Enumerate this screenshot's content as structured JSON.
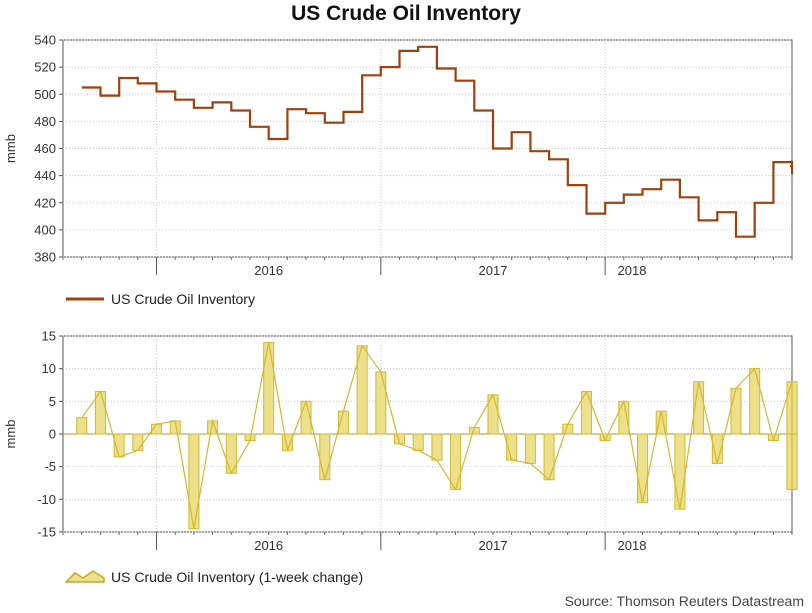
{
  "source": "Source: Thomson Reuters Datastream",
  "chart_data": [
    {
      "type": "line",
      "title": "US Crude Oil Inventory",
      "ylabel": "mmb",
      "ylim": [
        380,
        540
      ],
      "yticks": [
        380,
        400,
        420,
        440,
        460,
        480,
        500,
        520,
        540
      ],
      "x_ticks": [
        "2016",
        "2017",
        "2018"
      ],
      "legend_position": "bottom-left",
      "grid": true,
      "color": "#a0410d",
      "series": [
        {
          "name": "US Crude Oil Inventory",
          "x": [
            "2015-09",
            "2015-10",
            "2015-11",
            "2015-12",
            "2016-01",
            "2016-02",
            "2016-03",
            "2016-04",
            "2016-05",
            "2016-06",
            "2016-07",
            "2016-08",
            "2016-09",
            "2016-10",
            "2016-11",
            "2016-12",
            "2017-01",
            "2017-02",
            "2017-03",
            "2017-04",
            "2017-05",
            "2017-06",
            "2017-07",
            "2017-08",
            "2017-09",
            "2017-10",
            "2017-11",
            "2017-12",
            "2018-01",
            "2018-02",
            "2018-03",
            "2018-04",
            "2018-05",
            "2018-06",
            "2018-07",
            "2018-08",
            "2018-09",
            "2018-10",
            "2018-11",
            "2018-12"
          ],
          "values": [
            505,
            499,
            512,
            508,
            502,
            496,
            490,
            494,
            488,
            476,
            467,
            489,
            486,
            479,
            487,
            514,
            520,
            532,
            535,
            519,
            510,
            488,
            460,
            472,
            458,
            452,
            433,
            412,
            420,
            426,
            430,
            437,
            424,
            407,
            413,
            395,
            420,
            450,
            441,
            447
          ]
        }
      ]
    },
    {
      "type": "area",
      "ylabel": "mmb",
      "ylim": [
        -15,
        15
      ],
      "yticks": [
        -15,
        -10,
        -5,
        0,
        5,
        10,
        15
      ],
      "x_ticks": [
        "2016",
        "2017",
        "2018"
      ],
      "legend_position": "bottom-left",
      "grid": true,
      "color": "#d4c04a",
      "series": [
        {
          "name": "US Crude Oil Inventory (1-week change)",
          "x": [
            "2015-09",
            "2015-10",
            "2015-11",
            "2015-12",
            "2016-01",
            "2016-02",
            "2016-03",
            "2016-04",
            "2016-05",
            "2016-06",
            "2016-07",
            "2016-08",
            "2016-09",
            "2016-10",
            "2016-11",
            "2016-12",
            "2017-01",
            "2017-02",
            "2017-03",
            "2017-04",
            "2017-05",
            "2017-06",
            "2017-07",
            "2017-08",
            "2017-09",
            "2017-10",
            "2017-11",
            "2017-12",
            "2018-01",
            "2018-02",
            "2018-03",
            "2018-04",
            "2018-05",
            "2018-06",
            "2018-07",
            "2018-08",
            "2018-09",
            "2018-10",
            "2018-11",
            "2018-12"
          ],
          "values": [
            2.5,
            6.5,
            -3.5,
            -2.5,
            1.5,
            2.0,
            -14.5,
            2.0,
            -6.0,
            -1.0,
            14.0,
            -2.5,
            5.0,
            -7.0,
            3.5,
            13.5,
            9.5,
            -1.5,
            -2.5,
            -4.0,
            -8.5,
            1.0,
            6.0,
            -4.0,
            -4.5,
            -7.0,
            1.5,
            6.5,
            -1.0,
            5.0,
            -10.5,
            3.5,
            -11.5,
            8.0,
            -4.5,
            7.0,
            10.0,
            -1.0,
            8.0,
            -8.5
          ]
        }
      ]
    }
  ]
}
